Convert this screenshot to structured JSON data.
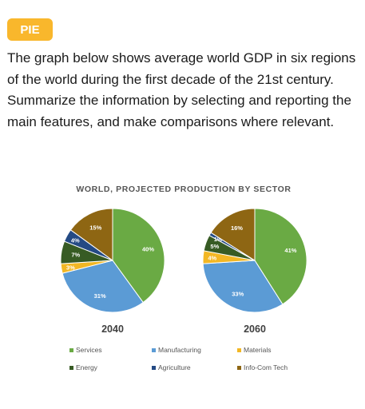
{
  "tag": {
    "label": "PIE"
  },
  "prompt": "The graph below shows average world GDP in six regions of the world during the first decade of the 21st century. Summarize the information by selecting and reporting the main features, and make comparisons where relevant.",
  "colors": {
    "Services": "#6aaa44",
    "Manufacturing": "#5b9bd5",
    "Materials": "#f2b724",
    "Energy": "#375b24",
    "Agriculture": "#244a84",
    "Info-Com Tech": "#8e6613"
  },
  "chart_data": {
    "type": "pie",
    "title": "WORLD, PROJECTED PRODUCTION BY SECTOR",
    "categories": [
      "Services",
      "Manufacturing",
      "Materials",
      "Energy",
      "Agriculture",
      "Info-Com Tech"
    ],
    "series": [
      {
        "name": "2040",
        "values": [
          40,
          31,
          3,
          7,
          4,
          15
        ],
        "labels": [
          "40%",
          "31%",
          "3%",
          "7%",
          "4%",
          "15%"
        ]
      },
      {
        "name": "2060",
        "values": [
          41,
          33,
          4,
          5,
          1,
          16
        ],
        "labels": [
          "41%",
          "33%",
          "4%",
          "5%",
          "1%",
          "16%"
        ]
      }
    ],
    "legend": [
      "Services",
      "Manufacturing",
      "Materials",
      "Energy",
      "Agriculture",
      "Info-Com Tech"
    ],
    "legend_position": "bottom"
  }
}
